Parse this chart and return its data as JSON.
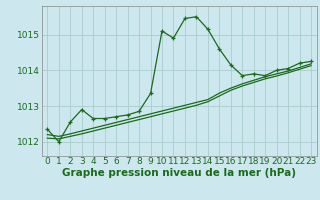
{
  "title": "Graphe pression niveau de la mer (hPa)",
  "background_color": "#cce8ee",
  "grid_color": "#aacccc",
  "line_color": "#1a6b1a",
  "xlim": [
    -0.5,
    23.5
  ],
  "ylim": [
    1011.6,
    1015.8
  ],
  "yticks": [
    1012,
    1013,
    1014,
    1015
  ],
  "xticks": [
    0,
    1,
    2,
    3,
    4,
    5,
    6,
    7,
    8,
    9,
    10,
    11,
    12,
    13,
    14,
    15,
    16,
    17,
    18,
    19,
    20,
    21,
    22,
    23
  ],
  "series1_x": [
    0,
    1,
    2,
    3,
    4,
    5,
    6,
    7,
    8,
    9,
    10,
    11,
    12,
    13,
    14,
    15,
    16,
    17,
    18,
    19,
    20,
    21,
    22,
    23
  ],
  "series1_y": [
    1012.35,
    1012.0,
    1012.55,
    1012.9,
    1012.65,
    1012.65,
    1012.7,
    1012.75,
    1012.85,
    1013.35,
    1015.1,
    1014.9,
    1015.45,
    1015.5,
    1015.15,
    1014.6,
    1014.15,
    1013.85,
    1013.9,
    1013.85,
    1014.0,
    1014.05,
    1014.2,
    1014.25
  ],
  "series2_x": [
    0,
    1,
    2,
    3,
    4,
    5,
    6,
    7,
    8,
    9,
    10,
    11,
    12,
    13,
    14,
    15,
    16,
    17,
    18,
    19,
    20,
    21,
    22,
    23
  ],
  "series2_y": [
    1012.2,
    1012.15,
    1012.22,
    1012.3,
    1012.38,
    1012.46,
    1012.54,
    1012.62,
    1012.7,
    1012.78,
    1012.86,
    1012.94,
    1013.02,
    1013.1,
    1013.18,
    1013.36,
    1013.5,
    1013.62,
    1013.72,
    1013.82,
    1013.9,
    1013.98,
    1014.08,
    1014.18
  ],
  "series3_x": [
    0,
    1,
    2,
    3,
    4,
    5,
    6,
    7,
    8,
    9,
    10,
    11,
    12,
    13,
    14,
    15,
    16,
    17,
    18,
    19,
    20,
    21,
    22,
    23
  ],
  "series3_y": [
    1012.1,
    1012.08,
    1012.15,
    1012.22,
    1012.3,
    1012.38,
    1012.46,
    1012.54,
    1012.62,
    1012.7,
    1012.78,
    1012.86,
    1012.94,
    1013.02,
    1013.12,
    1013.28,
    1013.44,
    1013.56,
    1013.66,
    1013.76,
    1013.84,
    1013.93,
    1014.03,
    1014.13
  ],
  "tick_fontsize": 6.5,
  "title_fontsize": 7.5
}
